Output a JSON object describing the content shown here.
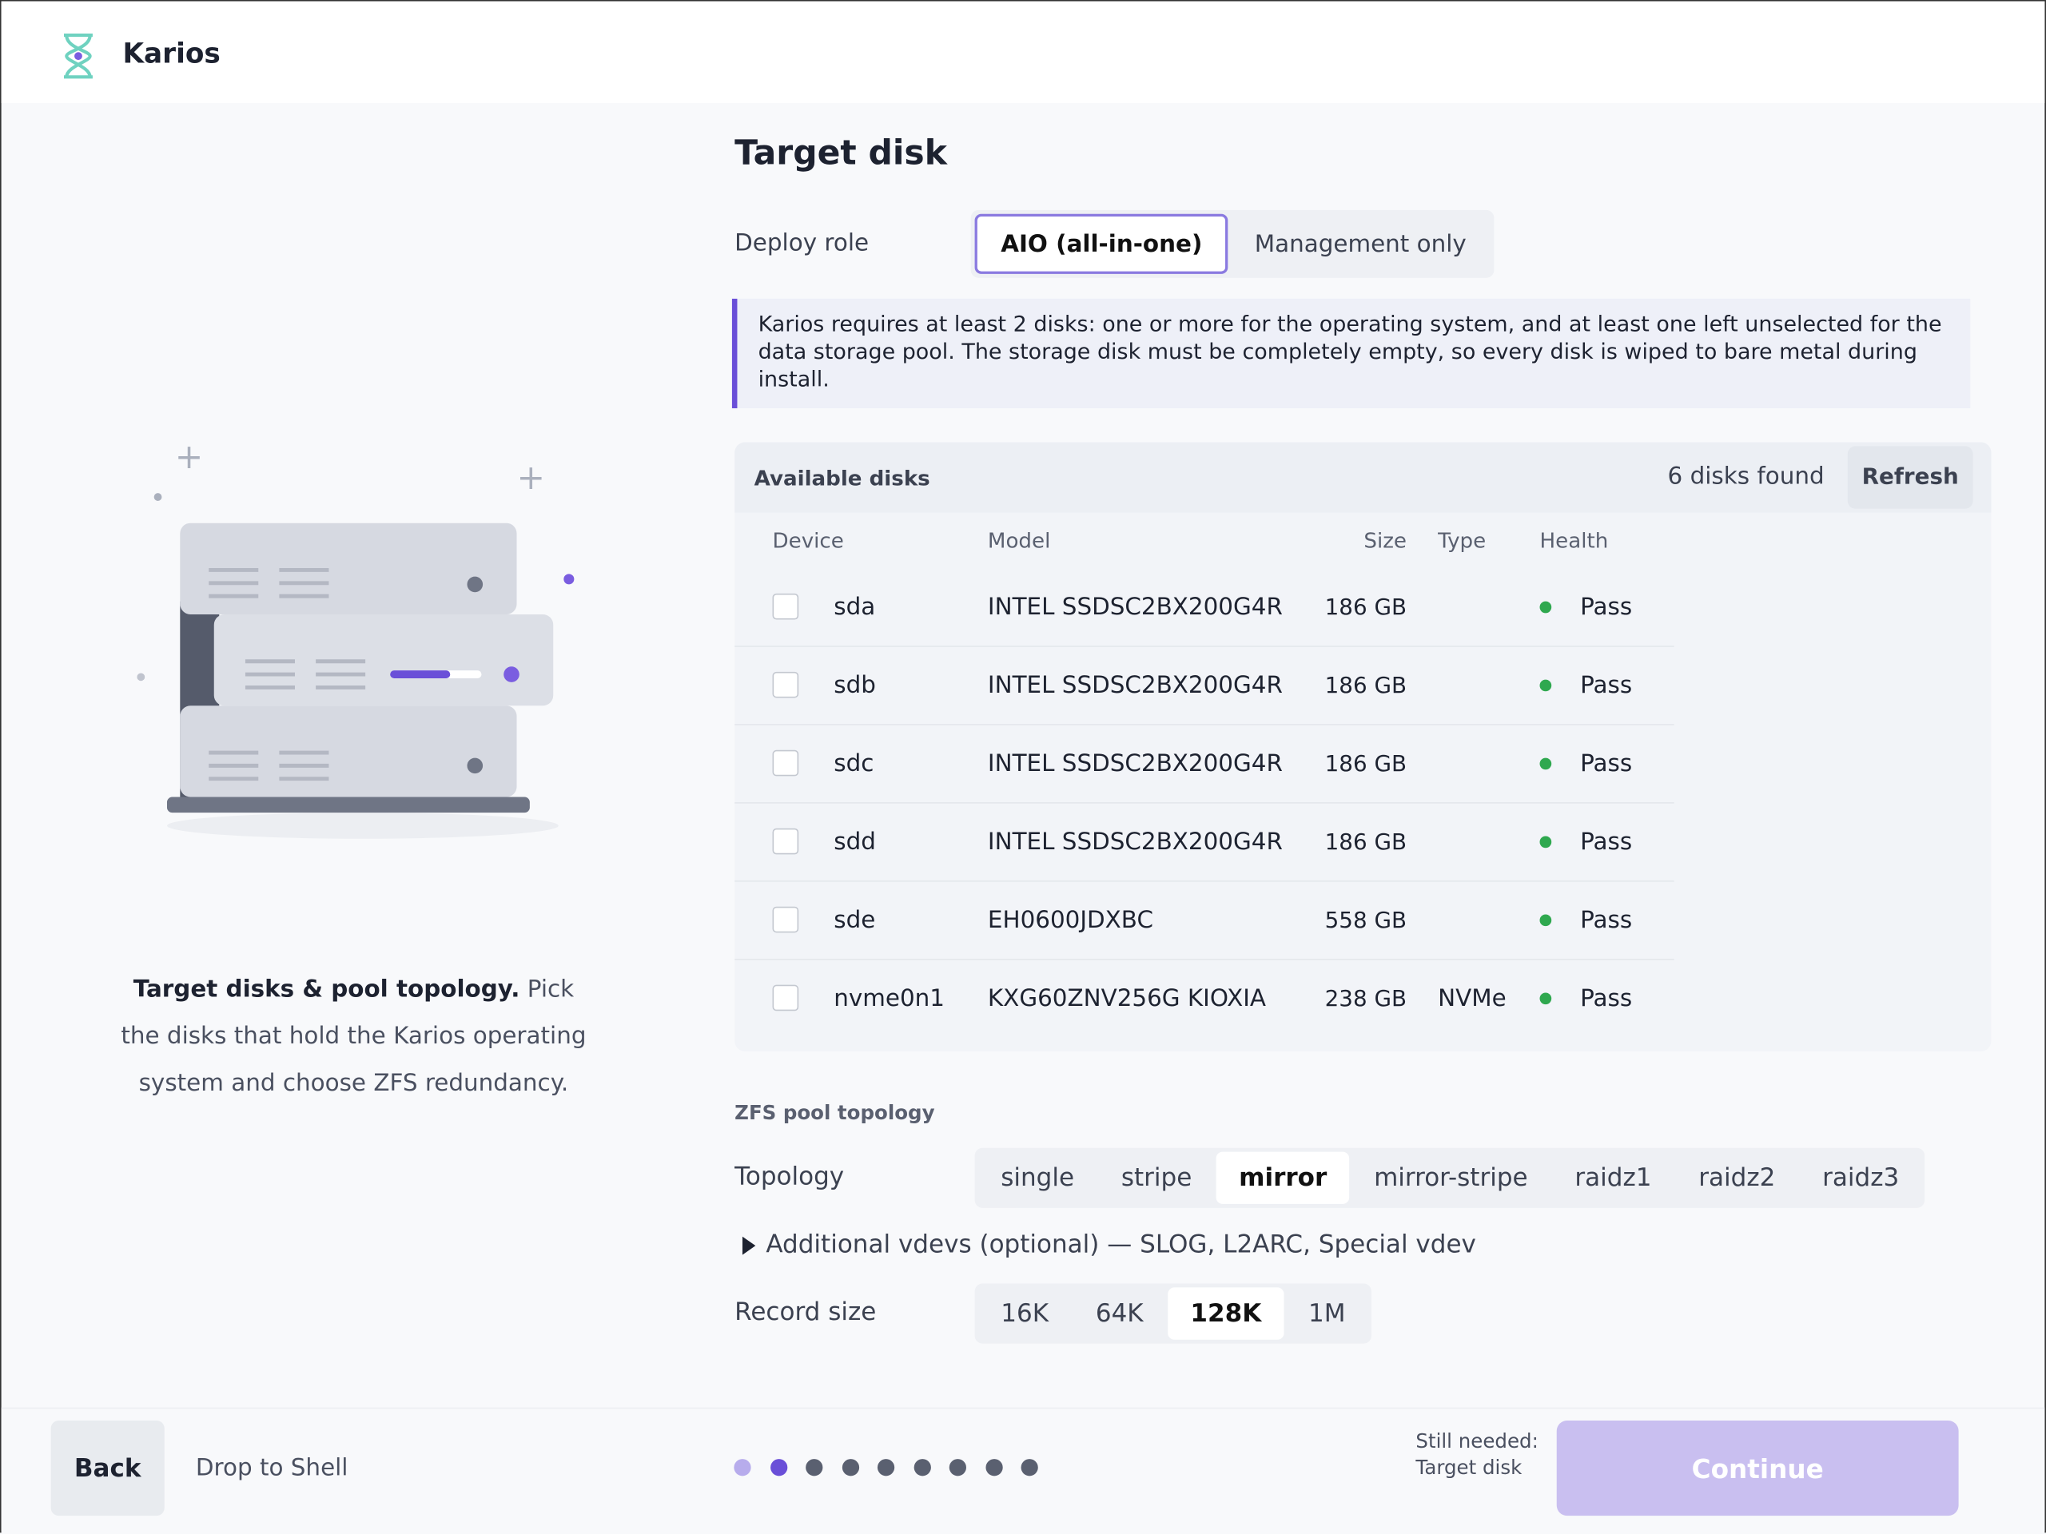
{
  "header": {
    "title": "Karios"
  },
  "sidebar": {
    "caption_bold": "Target disks & pool topology.",
    "caption": "Pick the disks that hold the Karios operating system and choose ZFS redundancy."
  },
  "main": {
    "title": "Target disk",
    "deploy_role": {
      "label": "Deploy role",
      "options": [
        "AIO (all-in-one)",
        "Management only"
      ],
      "selected": 0
    },
    "notice": "Karios requires at least 2 disks: one or more for the operating system, and at least one left unselected for the data storage pool. The storage disk must be completely empty, so every disk is wiped to bare metal during install.",
    "disks": {
      "title": "Available disks",
      "count": "6 disks found",
      "refresh": "Refresh",
      "columns": [
        "Device",
        "Model",
        "Size",
        "Type",
        "Health"
      ],
      "rows": [
        {
          "device": "sda",
          "model": "INTEL SSDSC2BX200G4R",
          "size": "186 GB",
          "health": "Pass"
        },
        {
          "device": "sdb",
          "model": "INTEL SSDSC2BX200G4R",
          "size": "186 GB",
          "health": "Pass"
        },
        {
          "device": "sdc",
          "model": "INTEL SSDSC2BX200G4R",
          "size": "186 GB",
          "health": "Pass"
        },
        {
          "device": "sdd",
          "model": "INTEL SSDSC2BX200G4R",
          "size": "186 GB",
          "health": "Pass"
        },
        {
          "device": "sde",
          "model": "EH0600JDXBC",
          "size": "558 GB",
          "health": "Pass"
        },
        {
          "device": "nvme0n1",
          "model": "KXG60ZNV256G KIOXIA",
          "size": "238 GB",
          "type": "NVMe",
          "health": "Pass"
        }
      ]
    },
    "pool_section": "ZFS pool topology",
    "topology": {
      "label": "Topology",
      "options": [
        "single",
        "stripe",
        "mirror",
        "mirror-stripe",
        "raidz1",
        "raidz2",
        "raidz3"
      ],
      "selected": 2
    },
    "additional": "Additional vdevs (optional) — SLOG, L2ARC, Special vdev",
    "record_size": {
      "label": "Record size",
      "options": [
        "16K",
        "64K",
        "128K",
        "1M"
      ],
      "selected": 2
    }
  },
  "footer": {
    "back": "Back",
    "shell": "Drop to Shell",
    "still_needed": "Still needed: Target disk",
    "continue": "Continue"
  }
}
